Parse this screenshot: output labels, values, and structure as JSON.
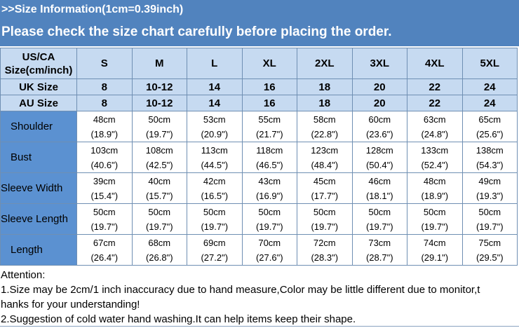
{
  "banner": {
    "title": ">>Size Information(1cm=0.39inch)",
    "subtitle": "Please check the size chart carefully before placing the order."
  },
  "table": {
    "header_label": "US/CA Size(cm/inch)",
    "sizes": [
      "S",
      "M",
      "L",
      "XL",
      "2XL",
      "3XL",
      "4XL",
      "5XL"
    ],
    "uk": {
      "label": "UK Size",
      "values": [
        "8",
        "10-12",
        "14",
        "16",
        "18",
        "20",
        "22",
        "24"
      ]
    },
    "au": {
      "label": "AU Size",
      "values": [
        "8",
        "10-12",
        "14",
        "16",
        "18",
        "20",
        "22",
        "24"
      ]
    },
    "rows": [
      {
        "label": "Shoulder",
        "cm": [
          "48cm",
          "50cm",
          "53cm",
          "55cm",
          "58cm",
          "60cm",
          "63cm",
          "65cm"
        ],
        "inch": [
          "(18.9\")",
          "(19.7\")",
          "(20.9\")",
          "(21.7\")",
          "(22.8\")",
          "(23.6\")",
          "(24.8\")",
          "(25.6\")"
        ]
      },
      {
        "label": "Bust",
        "cm": [
          "103cm",
          "108cm",
          "113cm",
          "118cm",
          "123cm",
          "128cm",
          "133cm",
          "138cm"
        ],
        "inch": [
          "(40.6\")",
          "(42.5\")",
          "(44.5\")",
          "(46.5\")",
          "(48.4\")",
          "(50.4\")",
          "(52.4\")",
          "(54.3\")"
        ]
      },
      {
        "label": "Sleeve Width",
        "cm": [
          "39cm",
          "40cm",
          "42cm",
          "43cm",
          "45cm",
          "46cm",
          "48cm",
          "49cm"
        ],
        "inch": [
          "(15.4\")",
          "(15.7\")",
          "(16.5\")",
          "(16.9\")",
          "(17.7\")",
          "(18.1\")",
          "(18.9\")",
          "(19.3\")"
        ]
      },
      {
        "label": "Sleeve Length",
        "cm": [
          "50cm",
          "50cm",
          "50cm",
          "50cm",
          "50cm",
          "50cm",
          "50cm",
          "50cm"
        ],
        "inch": [
          "(19.7\")",
          "(19.7\")",
          "(19.7\")",
          "(19.7\")",
          "(19.7\")",
          "(19.7\")",
          "(19.7\")",
          "(19.7\")"
        ]
      },
      {
        "label": "Length",
        "cm": [
          "67cm",
          "68cm",
          "69cm",
          "70cm",
          "72cm",
          "73cm",
          "74cm",
          "75cm"
        ],
        "inch": [
          "(26.4\")",
          "(26.8\")",
          "(27.2\")",
          "(27.6\")",
          "(28.3\")",
          "(28.7\")",
          "(29.1\")",
          "(29.5\")"
        ]
      }
    ]
  },
  "notes": {
    "heading": "Attention:",
    "line1a": "1.Size may be 2cm/1 inch inaccuracy due to hand measure,Color may be little different due to monitor,t",
    "line1b": "hanks for your understanding!",
    "line2": "2.Suggestion of cold water hand washing.It can help items keep their shape."
  },
  "colors": {
    "banner": "#5183be",
    "header_cells": "#c6daf1",
    "label_cells": "#5b91d1"
  }
}
